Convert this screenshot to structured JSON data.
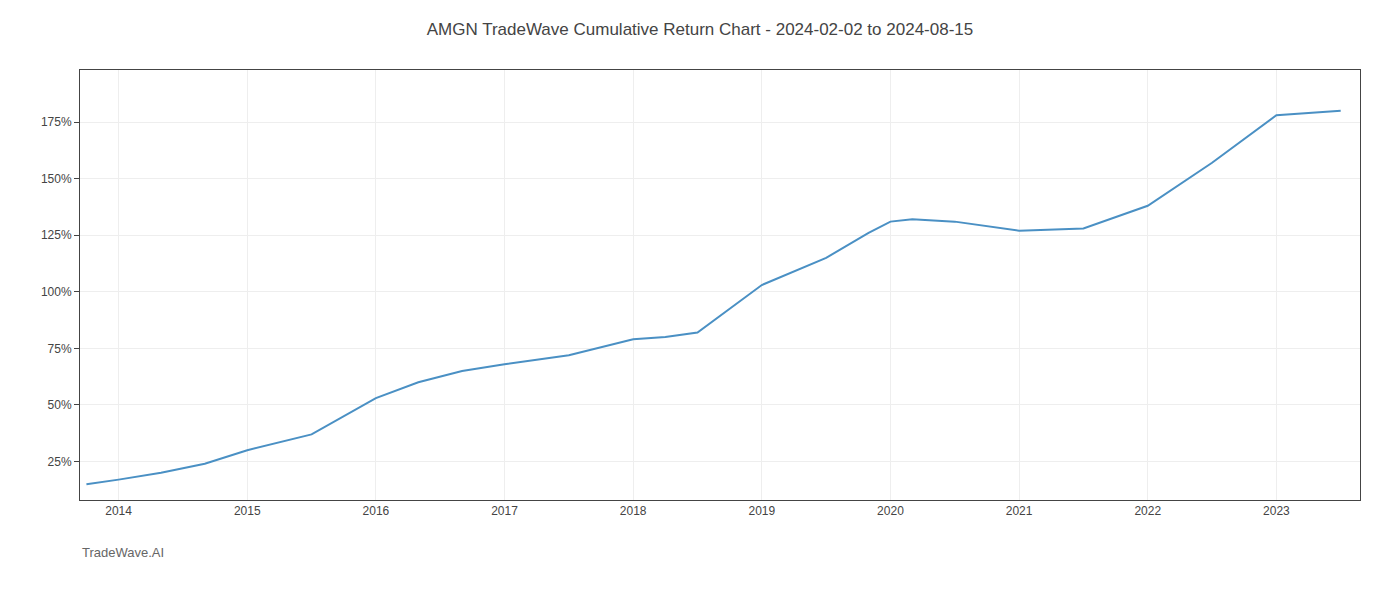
{
  "chart_data": {
    "type": "line",
    "title": "AMGN TradeWave Cumulative Return Chart - 2024-02-02 to 2024-08-15",
    "annotations": [
      "TradeWave.AI"
    ],
    "x": [
      2013.75,
      2014.0,
      2014.33,
      2014.67,
      2015.0,
      2015.5,
      2016.0,
      2016.33,
      2016.67,
      2017.0,
      2017.5,
      2018.0,
      2018.25,
      2018.5,
      2019.0,
      2019.5,
      2019.83,
      2020.0,
      2020.17,
      2020.5,
      2021.0,
      2021.5,
      2022.0,
      2022.5,
      2023.0,
      2023.5
    ],
    "values": [
      15,
      17,
      20,
      24,
      30,
      37,
      53,
      60,
      65,
      68,
      72,
      79,
      80,
      82,
      103,
      115,
      126,
      131,
      132,
      131,
      127,
      128,
      138,
      157,
      178,
      180
    ],
    "color": "#4a90c4",
    "xlim": [
      2013.7,
      2023.65
    ],
    "xticks": [
      2014,
      2015,
      2016,
      2017,
      2018,
      2019,
      2020,
      2021,
      2022,
      2023
    ],
    "ylim": [
      8,
      198
    ],
    "yticks": [
      {
        "value": 25,
        "label": "25%"
      },
      {
        "value": 50,
        "label": "50%"
      },
      {
        "value": 75,
        "label": "75%"
      },
      {
        "value": 100,
        "label": "100%"
      },
      {
        "value": 125,
        "label": "125%"
      },
      {
        "value": 150,
        "label": "150%"
      },
      {
        "value": 175,
        "label": "175%"
      }
    ],
    "grid": true
  }
}
